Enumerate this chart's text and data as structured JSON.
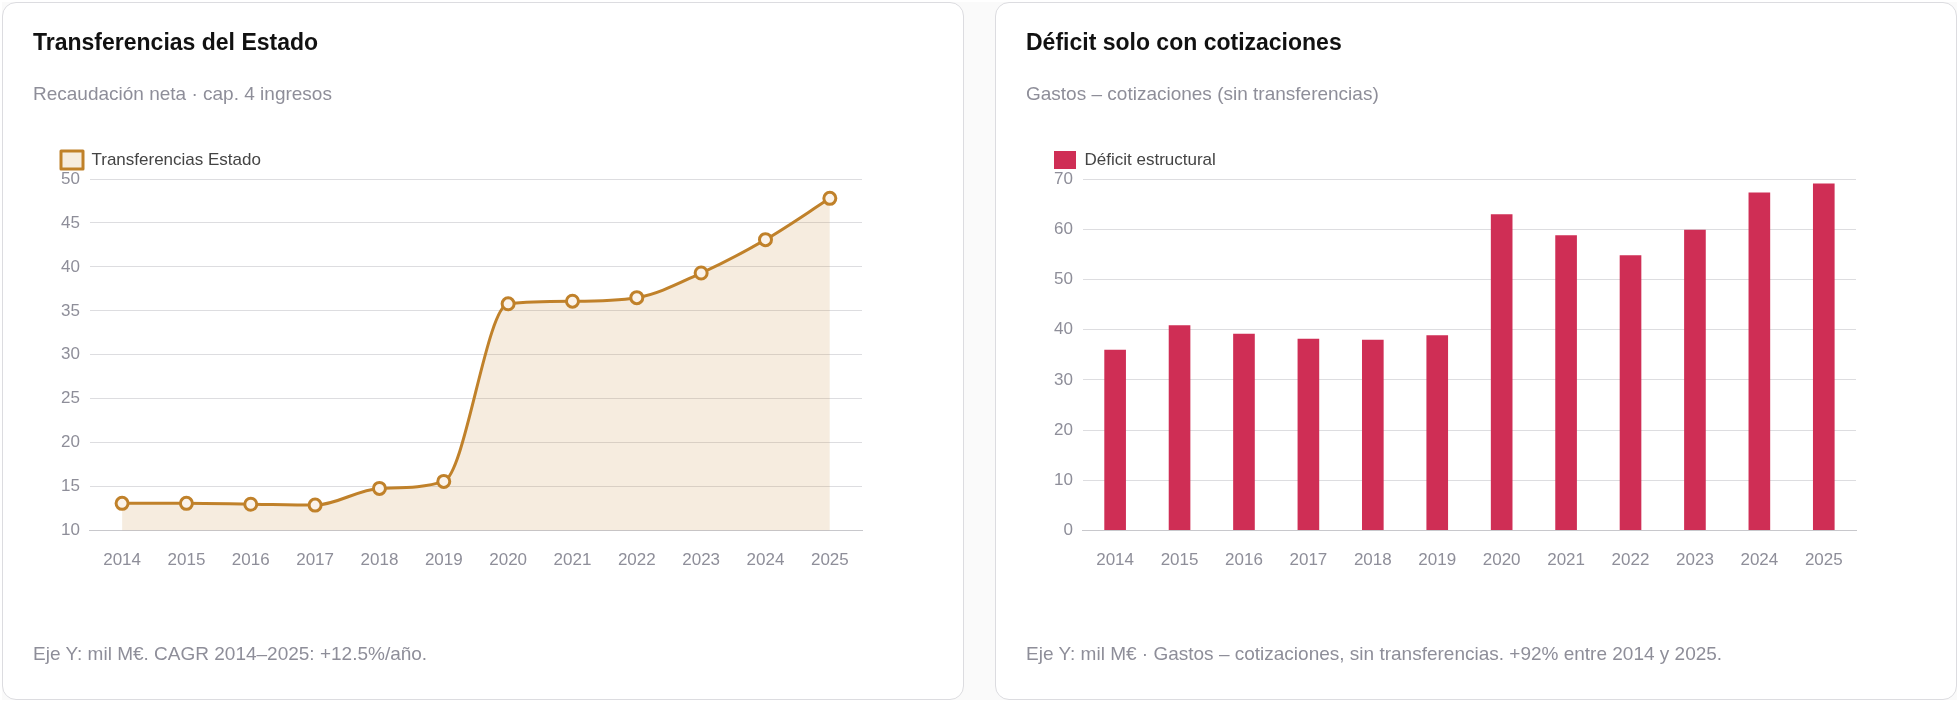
{
  "chart_data": [
    {
      "type": "area",
      "title": "Transferencias del Estado",
      "subtitle": "Recaudación neta · cap. 4 ingresos",
      "categories": [
        "2014",
        "2015",
        "2016",
        "2017",
        "2018",
        "2019",
        "2020",
        "2021",
        "2022",
        "2023",
        "2024",
        "2025"
      ],
      "series": [
        {
          "name": "Transferencias Estado",
          "color": "#c0812a",
          "values": [
            13.1,
            13.1,
            13.0,
            12.9,
            14.8,
            15.6,
            35.8,
            36.1,
            36.5,
            39.3,
            43.1,
            47.8
          ]
        }
      ],
      "ylim": [
        10,
        50
      ],
      "yticks": [
        10,
        15,
        20,
        25,
        30,
        35,
        40,
        45,
        50
      ],
      "grid": "y",
      "legend": "top left",
      "marker": "circle",
      "annotations": [
        "Eje Y: mil M€. CAGR 2014–2025: +12.5%/año."
      ]
    },
    {
      "type": "bar",
      "title": "Déficit solo con cotizaciones",
      "subtitle": "Gastos – cotizaciones (sin transferencias)",
      "categories": [
        "2014",
        "2015",
        "2016",
        "2017",
        "2018",
        "2019",
        "2020",
        "2021",
        "2022",
        "2023",
        "2024",
        "2025"
      ],
      "series": [
        {
          "name": "Déficit estructural",
          "color": "#cf2e55",
          "values": [
            36.0,
            40.9,
            39.2,
            38.2,
            38.0,
            38.9,
            63.0,
            58.8,
            54.8,
            59.9,
            67.3,
            69.1
          ]
        }
      ],
      "ylim": [
        0,
        70
      ],
      "yticks": [
        0,
        10,
        20,
        30,
        40,
        50,
        60,
        70
      ],
      "grid": "y",
      "legend": "top left",
      "annotations": [
        "Eje Y: mil M€ · Gastos – cotizaciones, sin transferencias. +92% entre 2014 y 2025."
      ]
    }
  ]
}
